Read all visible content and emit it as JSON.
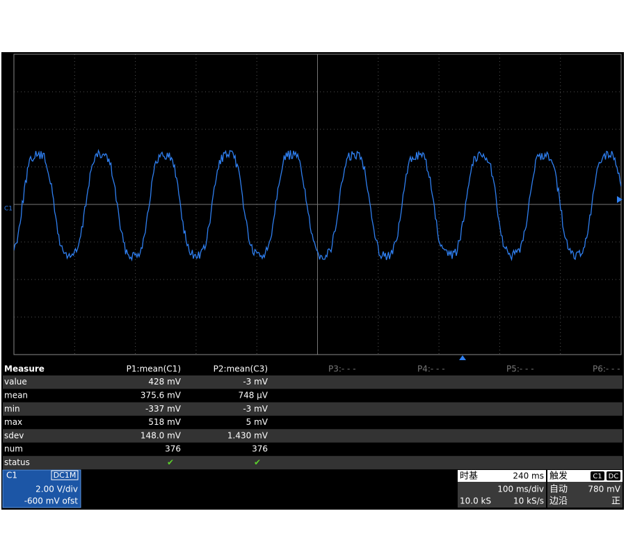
{
  "screen": {
    "channel_marker": "C1"
  },
  "measure": {
    "header": [
      "Measure",
      "P1:mean(C1)",
      "P2:mean(C3)",
      "P3:- - -",
      "P4:- - -",
      "P5:- - -",
      "P6:- - -"
    ],
    "rows": [
      [
        "value",
        "428 mV",
        "-3 mV"
      ],
      [
        "mean",
        "375.6 mV",
        "748 µV"
      ],
      [
        "min",
        "-337 mV",
        "-3 mV"
      ],
      [
        "max",
        "518 mV",
        "5 mV"
      ],
      [
        "sdev",
        "148.0 mV",
        "1.430 mV"
      ],
      [
        "num",
        "376",
        "376"
      ],
      [
        "status",
        "✔",
        "✔"
      ]
    ]
  },
  "channel": {
    "name": "C1",
    "coupling": "DC1M",
    "scale": "2.00 V/div",
    "offset": "-600 mV ofst"
  },
  "timebase": {
    "label": "时基",
    "delay": "240 ms",
    "scale": "100 ms/div",
    "samples": "10.0 kS",
    "rate": "10 kS/s"
  },
  "trigger": {
    "label": "触发",
    "source": "C1",
    "coupling": "DC",
    "mode": "自动",
    "level": "780 mV",
    "type": "边沿",
    "slope": "正"
  }
}
